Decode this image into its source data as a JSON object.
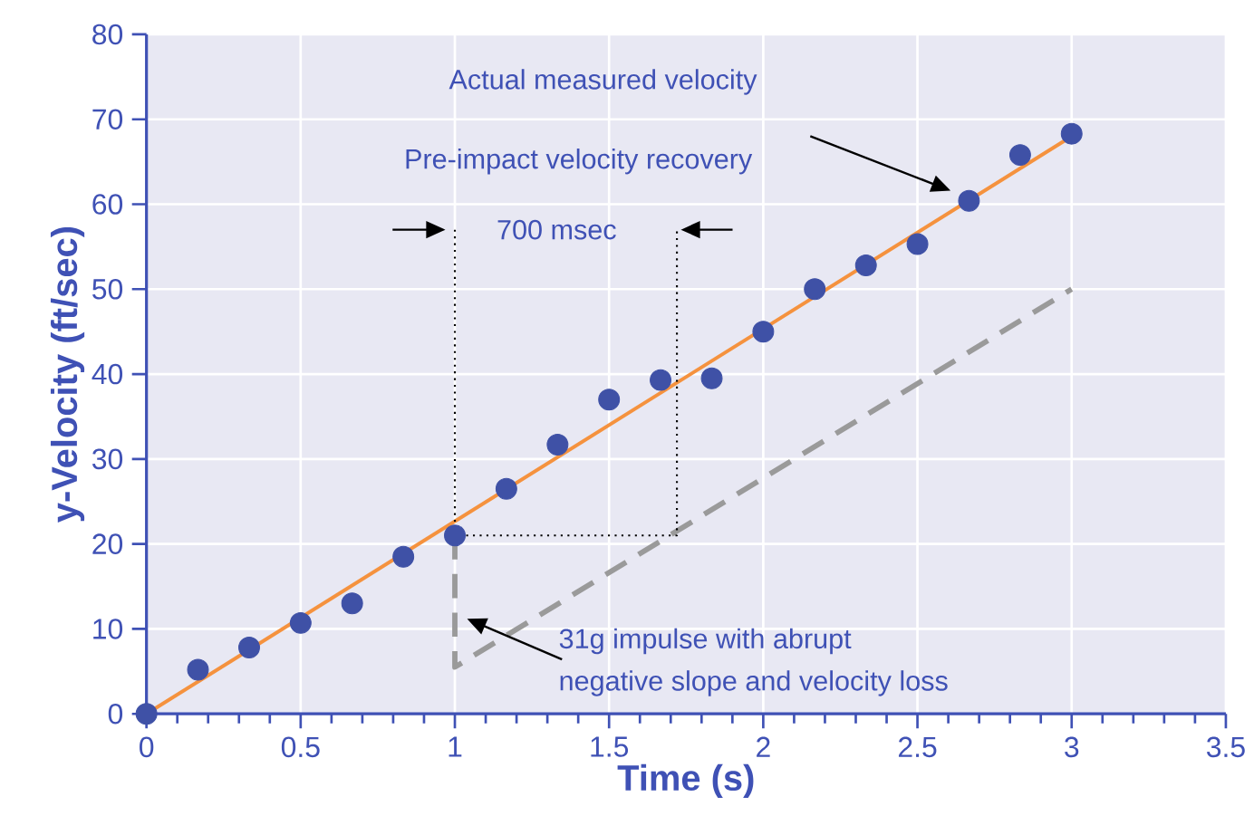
{
  "chart_data": {
    "type": "scatter",
    "xlabel": "Time (s)",
    "ylabel": "y-Velocity (ft/sec)",
    "xlim": [
      0,
      3.5
    ],
    "ylim": [
      0,
      80
    ],
    "xticks": [
      0,
      0.5,
      1,
      1.5,
      2,
      2.5,
      3,
      3.5
    ],
    "yticks": [
      0,
      10,
      20,
      30,
      40,
      50,
      60,
      70,
      80
    ],
    "grid": true,
    "series": [
      {
        "type": "line",
        "color": "#f5923e",
        "line_style": "solid",
        "marker": "none",
        "x": [
          0,
          3
        ],
        "values": [
          0,
          68
        ]
      },
      {
        "type": "line",
        "color": "#9a9a9a",
        "line_style": "dashed",
        "marker": "none",
        "x": [
          1,
          1,
          3
        ],
        "values": [
          21,
          5.5,
          50
        ]
      },
      {
        "type": "line",
        "color": "#000000",
        "line_style": "dotted",
        "marker": "none",
        "x": [
          1,
          1,
          1.72,
          1.72
        ],
        "values": [
          57,
          21,
          21,
          57
        ]
      },
      {
        "color": "#3f51a6",
        "marker": "circle",
        "x": [
          0,
          0.167,
          0.333,
          0.5,
          0.667,
          0.833,
          1,
          1.167,
          1.333,
          1.5,
          1.667,
          1.833,
          2,
          2.167,
          2.333,
          2.5,
          2.667,
          2.833,
          3
        ],
        "values": [
          0,
          5.2,
          7.8,
          10.7,
          13,
          18.5,
          21,
          26.5,
          31.7,
          37,
          39.3,
          39.5,
          45,
          50,
          52.8,
          55.3,
          60.4,
          65.8,
          68.3
        ]
      }
    ],
    "annotations": [
      "Actual measured velocity",
      "Pre-impact velocity recovery",
      "700 msec",
      "31g impulse with abrupt",
      "negative slope and velocity loss"
    ]
  }
}
